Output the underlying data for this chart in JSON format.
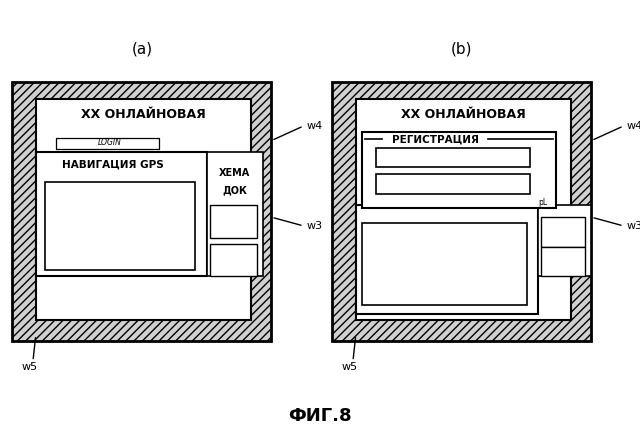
{
  "title": "ФИГ.8",
  "panel_a_label": "(a)",
  "panel_b_label": "(b)",
  "bg_color": "#ffffff",
  "w4_label": "w4",
  "w3_label": "w3",
  "w5_label": "w5",
  "panel_a": {
    "title_text": "ХХ ОНЛАЙНОВАЯ",
    "login_text": "LOGIN",
    "nav_text": "НАВИГАЦИЯ GPS",
    "side_text1": "ХЕМА",
    "side_text2": "ДОК"
  },
  "panel_b": {
    "title_text": "ХХ ОНЛАЙНОВАЯ",
    "reg_text": "РЕГИСТРАЦИЯ",
    "pl_text": "рL"
  }
}
